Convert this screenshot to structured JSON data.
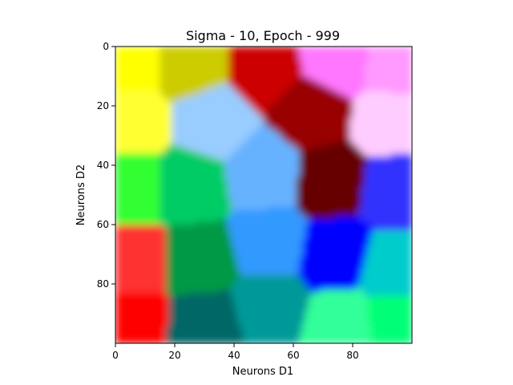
{
  "chart_data": {
    "type": "heatmap",
    "title": "Sigma - 10, Epoch - 999",
    "xlabel": "Neurons D1",
    "ylabel": "Neurons D2",
    "xlim": [
      0,
      100
    ],
    "ylim": [
      100,
      0
    ],
    "y_axis_inverted": true,
    "grid": false,
    "x_ticks": [
      0,
      20,
      40,
      60,
      80
    ],
    "x_tick_labels": [
      "0",
      "20",
      "40",
      "60",
      "80"
    ],
    "y_ticks": [
      0,
      20,
      40,
      60,
      80
    ],
    "y_tick_labels": [
      "0",
      "20",
      "40",
      "60",
      "80"
    ],
    "clusters": [
      {
        "x": 5,
        "y": 5,
        "color": "#ffff00"
      },
      {
        "x": 25,
        "y": 6,
        "color": "#cccc00"
      },
      {
        "x": 50,
        "y": 6,
        "color": "#cc0000"
      },
      {
        "x": 75,
        "y": 5,
        "color": "#ff77ff"
      },
      {
        "x": 94,
        "y": 6,
        "color": "#ff99ff"
      },
      {
        "x": 5,
        "y": 25,
        "color": "#ffff33"
      },
      {
        "x": 32,
        "y": 25,
        "color": "#99ccff"
      },
      {
        "x": 67,
        "y": 22,
        "color": "#990000"
      },
      {
        "x": 92,
        "y": 25,
        "color": "#ffccff"
      },
      {
        "x": 5,
        "y": 47,
        "color": "#33ff33"
      },
      {
        "x": 25,
        "y": 47,
        "color": "#00cc66"
      },
      {
        "x": 50,
        "y": 43,
        "color": "#66b2ff"
      },
      {
        "x": 73,
        "y": 45,
        "color": "#660000"
      },
      {
        "x": 94,
        "y": 48,
        "color": "#3333ff"
      },
      {
        "x": 5,
        "y": 72,
        "color": "#ff3333"
      },
      {
        "x": 28,
        "y": 72,
        "color": "#009944"
      },
      {
        "x": 52,
        "y": 66,
        "color": "#3399ff"
      },
      {
        "x": 74,
        "y": 70,
        "color": "#0000ff"
      },
      {
        "x": 94,
        "y": 75,
        "color": "#00cccc"
      },
      {
        "x": 5,
        "y": 93,
        "color": "#ff0000"
      },
      {
        "x": 30,
        "y": 94,
        "color": "#006666"
      },
      {
        "x": 52,
        "y": 88,
        "color": "#009999"
      },
      {
        "x": 76,
        "y": 94,
        "color": "#33ff99"
      },
      {
        "x": 95,
        "y": 93,
        "color": "#00ff77"
      }
    ]
  }
}
